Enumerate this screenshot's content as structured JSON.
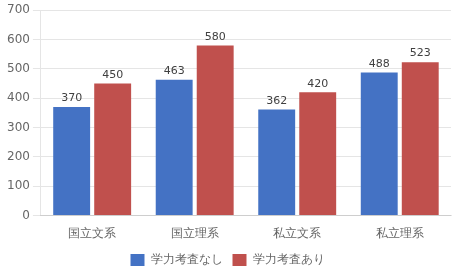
{
  "chart_data": {
    "type": "bar",
    "categories": [
      "国立文系",
      "国立理系",
      "私立文系",
      "私立理系"
    ],
    "series": [
      {
        "name": "学力考査なし",
        "color": "#4472C4",
        "values": [
          370,
          463,
          362,
          488
        ]
      },
      {
        "name": "学力考査あり",
        "color": "#C0504D",
        "values": [
          450,
          580,
          420,
          523
        ]
      }
    ],
    "ylim": [
      0,
      700
    ],
    "yticks": [
      0,
      100,
      200,
      300,
      400,
      500,
      600,
      700
    ],
    "grid": true,
    "legend": "bottom",
    "data_labels": true
  }
}
